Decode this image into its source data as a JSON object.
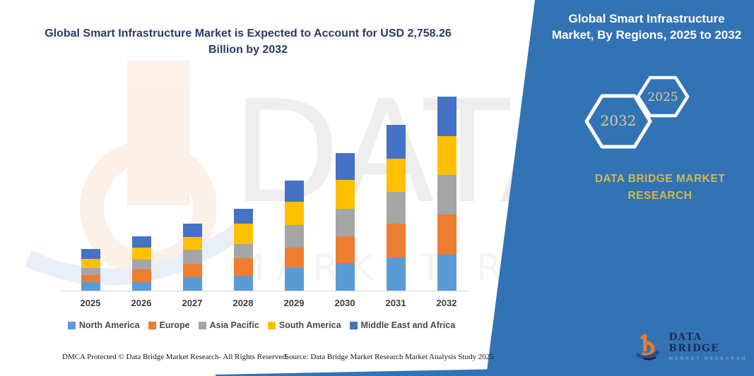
{
  "header": {
    "title": "Global Smart Infrastructure Market is Expected to Account for USD 2,758.26 Billion by 2032"
  },
  "chart_data": {
    "type": "bar",
    "stacked": true,
    "title": "Global Smart Infrastructure Market is Expected to Account for USD 2,758.26 Billion by 2032",
    "unit": "USD Billion",
    "values_estimated_from_pixels": true,
    "y_axis_visible": false,
    "grid": false,
    "legend_position": "bottom",
    "ylim": [
      0,
      3000
    ],
    "categories": [
      "2025",
      "2026",
      "2027",
      "2028",
      "2029",
      "2030",
      "2031",
      "2032"
    ],
    "series": [
      {
        "name": "North America",
        "color": "#5B9BD5",
        "values": [
          127,
          127,
          200,
          223,
          326,
          402,
          479,
          522
        ]
      },
      {
        "name": "Europe",
        "color": "#ED7D31",
        "values": [
          100,
          183,
          190,
          250,
          299,
          379,
          482,
          572
        ]
      },
      {
        "name": "Asia Pacific",
        "color": "#A5A5A5",
        "values": [
          107,
          143,
          200,
          200,
          316,
          386,
          452,
          559
        ]
      },
      {
        "name": "South America",
        "color": "#FFC000",
        "values": [
          127,
          167,
          183,
          283,
          326,
          412,
          472,
          549
        ]
      },
      {
        "name": "Middle East and Africa",
        "color": "#4472C4",
        "values": [
          140,
          160,
          190,
          217,
          306,
          382,
          476,
          556
        ]
      }
    ],
    "totals": [
      601,
      780,
      963,
      1173,
      1573,
      1961,
      2361,
      2758.26
    ]
  },
  "side_panel": {
    "heading": "Global Smart Infrastructure Market, By Regions, 2025 to 2032",
    "hexagons": [
      {
        "label": "2032"
      },
      {
        "label": "2025"
      }
    ],
    "brand_text": "DATA BRIDGE MARKET RESEARCH",
    "logo": {
      "name": "DATA BRIDGE",
      "tagline": "MARKET RESEARCH"
    }
  },
  "watermark": {
    "line1": "DATA B",
    "line2": "MARKET RESEARCH"
  },
  "footer": {
    "left": "DMCA Protected © Data Bridge Market Research-  All Rights Reserved.",
    "right": "Source: Data Bridge Market Research  Market Analysis Study 2025"
  },
  "colors": {
    "panel": "#3273B5",
    "title_text": "#2A3B66",
    "brand_gold": "#D3BA45",
    "hex_label": "#DACD96",
    "axis_line": "#D6D6D6"
  }
}
